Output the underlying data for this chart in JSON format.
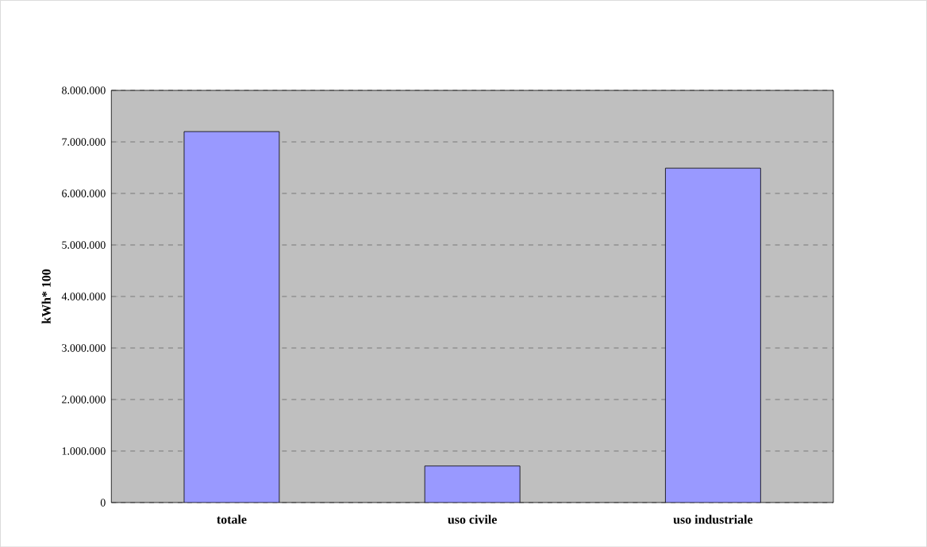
{
  "chart_data": {
    "type": "bar",
    "ylabel": "kWh* 100",
    "categories": [
      "totale",
      "uso civile",
      "uso industriale"
    ],
    "values": [
      7200000,
      710000,
      6490000
    ],
    "color": "#9999ff",
    "ylim": [
      0,
      8000000
    ],
    "yticks": [
      {
        "value": 0,
        "label": "0"
      },
      {
        "value": 1000000,
        "label": "1.000.000"
      },
      {
        "value": 2000000,
        "label": "2.000.000"
      },
      {
        "value": 3000000,
        "label": "3.000.000"
      },
      {
        "value": 4000000,
        "label": "4.000.000"
      },
      {
        "value": 5000000,
        "label": "5.000.000"
      },
      {
        "value": 6000000,
        "label": "6.000.000"
      },
      {
        "value": 7000000,
        "label": "7.000.000"
      },
      {
        "value": 8000000,
        "label": "8.000.000"
      }
    ],
    "grid": "y"
  }
}
